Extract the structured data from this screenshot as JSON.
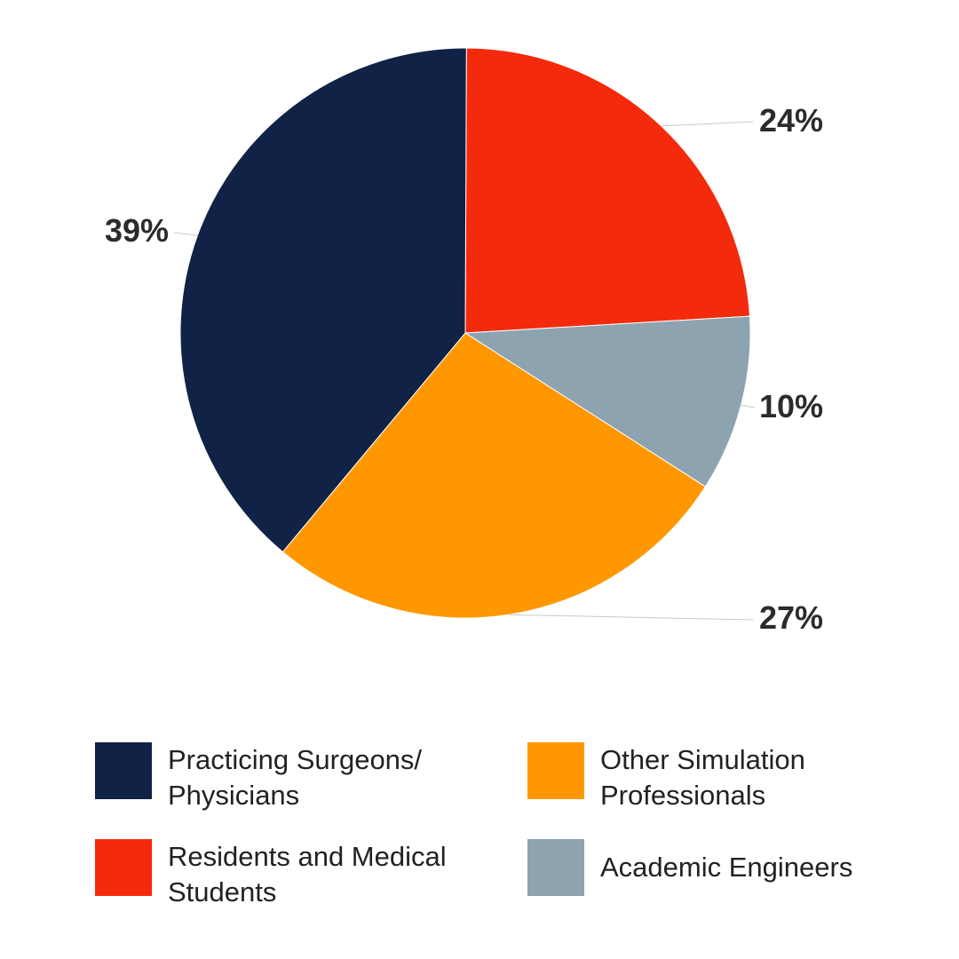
{
  "chart_data": {
    "type": "pie",
    "slices": [
      {
        "label": "Residents and Medical Students",
        "value": 24,
        "value_label": "24%",
        "color": "#F42A0C"
      },
      {
        "label": "Academic Engineers",
        "value": 10,
        "value_label": "10%",
        "color": "#8DA3B0"
      },
      {
        "label": "Other Simulation Professionals",
        "value": 27,
        "value_label": "27%",
        "color": "#FF9800"
      },
      {
        "label": "Practicing Surgeons/ Physicians",
        "value": 39,
        "value_label": "39%",
        "color": "#112247"
      }
    ],
    "legend_position": "bottom"
  },
  "legend": {
    "items": [
      {
        "text": "Practicing Surgeons/\nPhysicians",
        "color": "#112247"
      },
      {
        "text": "Other Simulation\nProfessionals",
        "color": "#FF9800"
      },
      {
        "text": "Residents and Medical\nStudents",
        "color": "#F42A0C"
      },
      {
        "text": "Academic Engineers",
        "color": "#8DA3B0"
      }
    ]
  }
}
